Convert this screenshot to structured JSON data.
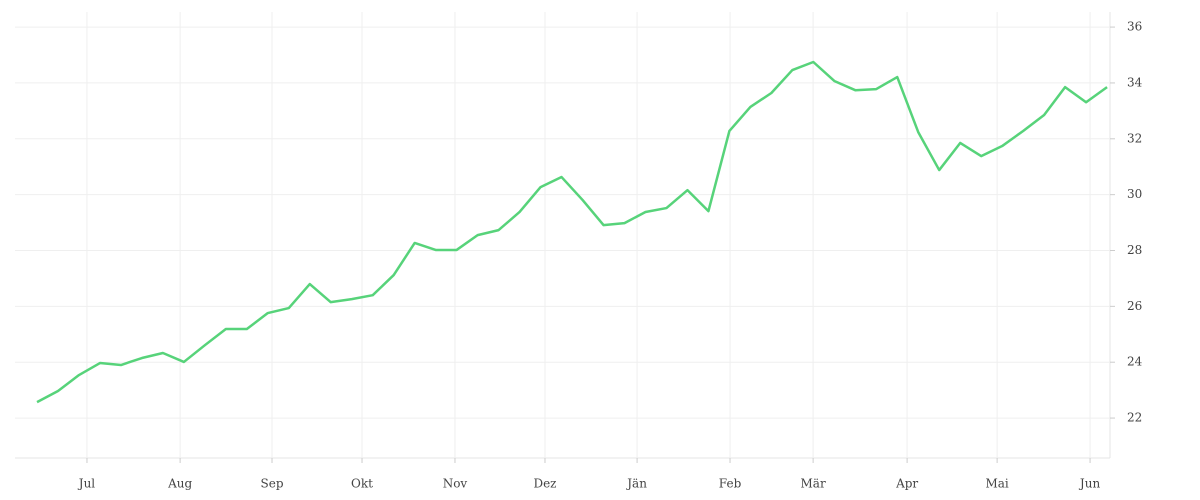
{
  "chart_data": {
    "type": "line",
    "x": [
      0,
      1,
      2,
      3,
      4,
      5,
      6,
      7,
      8,
      9,
      10,
      11,
      12,
      13,
      14,
      15,
      16,
      17,
      18,
      19,
      20,
      21,
      22,
      23,
      24,
      25,
      26,
      27,
      28,
      29,
      30,
      31,
      32,
      33,
      34,
      35,
      36,
      37,
      38,
      39,
      40,
      41,
      42,
      43,
      44,
      45,
      46,
      47,
      48,
      49,
      50,
      51
    ],
    "series": [
      {
        "color": "#57d37a",
        "values": [
          22.57,
          22.97,
          23.54,
          23.97,
          23.9,
          24.15,
          24.33,
          24.01,
          24.61,
          25.19,
          25.19,
          25.76,
          25.94,
          26.8,
          26.15,
          26.26,
          26.4,
          27.12,
          28.27,
          28.02,
          28.02,
          28.55,
          28.73,
          29.38,
          30.27,
          30.63,
          29.81,
          28.91,
          28.98,
          29.38,
          29.52,
          30.16,
          29.41,
          32.28,
          33.14,
          33.64,
          34.46,
          34.75,
          34.07,
          33.74,
          33.78,
          34.21,
          32.24,
          30.88,
          31.85,
          31.38,
          31.74,
          32.28,
          32.85,
          33.85,
          33.31,
          33.85
        ]
      }
    ],
    "xlim": [
      -1.05,
      51.14
    ],
    "xticks": [
      {
        "value": 2.38,
        "label": "Jul"
      },
      {
        "value": 6.82,
        "label": "Aug"
      },
      {
        "value": 11.2,
        "label": "Sep"
      },
      {
        "value": 15.49,
        "label": "Okt"
      },
      {
        "value": 19.92,
        "label": "Nov"
      },
      {
        "value": 24.21,
        "label": "Dez"
      },
      {
        "value": 28.6,
        "label": "Jän"
      },
      {
        "value": 33.03,
        "label": "Feb"
      },
      {
        "value": 36.99,
        "label": "Mär"
      },
      {
        "value": 41.47,
        "label": "Apr"
      },
      {
        "value": 45.76,
        "label": "Mai"
      },
      {
        "value": 50.19,
        "label": "Jun"
      }
    ],
    "ylim": [
      20.57,
      36.54
    ],
    "yticks": [
      22,
      24,
      26,
      28,
      30,
      32,
      34,
      36
    ],
    "grid": true
  }
}
